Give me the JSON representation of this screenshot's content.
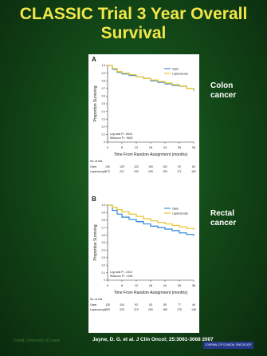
{
  "slide": {
    "title": "CLASSIC Trial 3 Year Overall Survival",
    "citation": "Jayne, D. G. et al. J Clin Oncol; 25:3061-3068 2007",
    "credit": "Credit: University of Leeds",
    "journal": "JOURNAL OF CLINICAL ONCOLOGY",
    "colors": {
      "title": "#f2e74a",
      "background": "#165a1d",
      "open": "#3b8fd9",
      "laparoscopic": "#e8c83a"
    }
  },
  "chart_data": [
    {
      "type": "line",
      "panel": "A",
      "side_label": [
        "Colon",
        "cancer"
      ],
      "xlabel": "Time From Random Assignment (months)",
      "ylabel": "Proportion Surviving",
      "xlim": [
        0,
        36
      ],
      "ylim": [
        0,
        1.0
      ],
      "xticks": [
        0,
        6,
        12,
        18,
        24,
        30,
        36
      ],
      "yticks": [
        "0",
        "0.1",
        "0.2",
        "0.3",
        "0.4",
        "0.5",
        "0.6",
        "0.7",
        "0.8",
        "0.9",
        "1.0"
      ],
      "legend": [
        "Open",
        "Laparoscopic"
      ],
      "stats": [
        "Log rank P= .5544",
        "Wilcoxon P= .5629"
      ],
      "series": [
        {
          "name": "Open",
          "x": [
            0,
            2,
            4,
            6,
            9,
            12,
            15,
            18,
            21,
            24,
            27,
            30,
            33,
            36
          ],
          "y": [
            1.0,
            0.95,
            0.91,
            0.89,
            0.87,
            0.85,
            0.83,
            0.8,
            0.78,
            0.76,
            0.74,
            0.73,
            0.7,
            0.67
          ]
        },
        {
          "name": "Laparoscopic",
          "x": [
            0,
            2,
            4,
            6,
            9,
            12,
            15,
            18,
            21,
            24,
            27,
            30,
            33,
            36
          ],
          "y": [
            1.0,
            0.96,
            0.92,
            0.9,
            0.88,
            0.85,
            0.83,
            0.81,
            0.79,
            0.77,
            0.75,
            0.73,
            0.7,
            0.68
          ]
        }
      ],
      "at_risk": {
        "header": "No. at risk",
        "rows": [
          {
            "label": "Open",
            "values": [
              "140",
              "129",
              "122",
              "109",
              "102",
              "92",
              "84"
            ]
          },
          {
            "label": "Laparoscopic",
            "values": [
              "273",
              "247",
              "230",
              "209",
              "190",
              "171",
              "162"
            ]
          }
        ]
      }
    },
    {
      "type": "line",
      "panel": "B",
      "side_label": [
        "Rectal",
        "cancer"
      ],
      "xlabel": "Time From Random Assignment (months)",
      "ylabel": "Proportion Surviving",
      "xlim": [
        0,
        36
      ],
      "ylim": [
        0,
        1.0
      ],
      "xticks": [
        0,
        6,
        12,
        18,
        24,
        30,
        36
      ],
      "yticks": [
        "0",
        "0.1",
        "0.2",
        "0.3",
        "0.4",
        "0.5",
        "0.6",
        "0.7",
        "0.8",
        "0.9",
        "1.0"
      ],
      "legend": [
        "Open",
        "Laparoscopic"
      ],
      "stats": [
        "Log rank P= .2310",
        "Wilcoxon P= .1206"
      ],
      "series": [
        {
          "name": "Open",
          "x": [
            0,
            2,
            4,
            6,
            9,
            12,
            15,
            18,
            21,
            24,
            27,
            30,
            33,
            36
          ],
          "y": [
            1.0,
            0.93,
            0.88,
            0.84,
            0.81,
            0.78,
            0.75,
            0.72,
            0.7,
            0.68,
            0.66,
            0.63,
            0.61,
            0.59
          ]
        },
        {
          "name": "Laparoscopic",
          "x": [
            0,
            2,
            4,
            6,
            9,
            12,
            15,
            18,
            21,
            24,
            27,
            30,
            33,
            36
          ],
          "y": [
            1.0,
            0.97,
            0.94,
            0.91,
            0.88,
            0.85,
            0.82,
            0.79,
            0.77,
            0.75,
            0.73,
            0.71,
            0.69,
            0.67
          ]
        }
      ],
      "at_risk": {
        "header": "No. at risk",
        "rows": [
          {
            "label": "Open",
            "values": [
              "128",
              "104",
              "92",
              "83",
              "85",
              "77",
              "46"
            ]
          },
          {
            "label": "Laparoscopic",
            "values": [
              "253",
              "229",
              "213",
              "200",
              "185",
              "175",
              "148"
            ]
          }
        ]
      }
    }
  ]
}
